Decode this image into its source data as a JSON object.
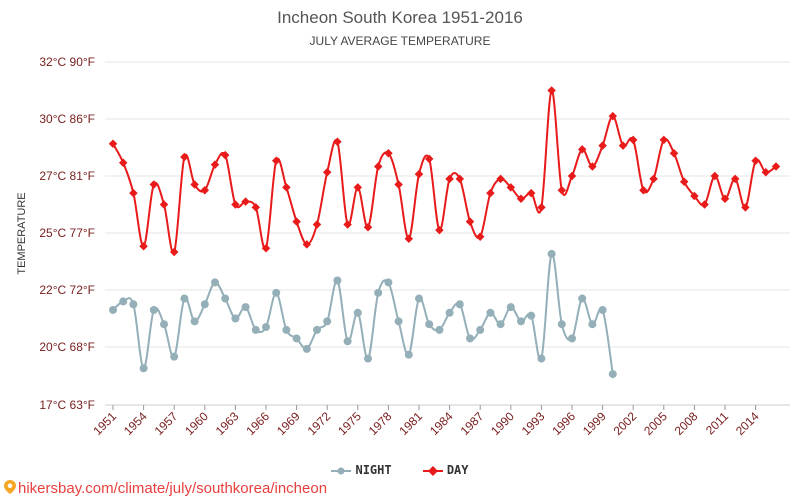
{
  "title": "Incheon South Korea 1951-2016",
  "subtitle": "JULY AVERAGE TEMPERATURE",
  "footer_url": "hikersbay.com/climate/july/southkorea/incheon",
  "colors": {
    "day": "#e81a1a",
    "night": "#94afb8",
    "grid": "#e6e6e6",
    "axis_text": "#7a2020"
  },
  "chart_data": {
    "type": "line",
    "title": "Incheon South Korea 1951-2016",
    "subtitle": "JULY AVERAGE TEMPERATURE",
    "ylabel": "TEMPERATURE",
    "ylim": [
      17,
      32
    ],
    "y_ticks": [
      {
        "value": 17,
        "label": "17°C 63°F"
      },
      {
        "value": 20,
        "label": "20°C 68°F"
      },
      {
        "value": 22,
        "label": "22°C 72°F"
      },
      {
        "value": 25,
        "label": "25°C 77°F"
      },
      {
        "value": 27,
        "label": "27°C 81°F"
      },
      {
        "value": 30,
        "label": "30°C 86°F"
      },
      {
        "value": 32,
        "label": "32°C 90°F"
      }
    ],
    "xlim": [
      1951,
      2016
    ],
    "x_ticks": [
      "1951",
      "1954",
      "1957",
      "1960",
      "1963",
      "1966",
      "1969",
      "1972",
      "1975",
      "1978",
      "1981",
      "1984",
      "1987",
      "1990",
      "1993",
      "1996",
      "1999",
      "2002",
      "2005",
      "2008",
      "2011",
      "2014"
    ],
    "grid": true,
    "legend": "bottom",
    "series": [
      {
        "name": "NIGHT",
        "x": [
          1951,
          1952,
          1953,
          1954,
          1955,
          1956,
          1957,
          1958,
          1959,
          1960,
          1961,
          1962,
          1963,
          1964,
          1965,
          1966,
          1967,
          1968,
          1969,
          1970,
          1971,
          1972,
          1973,
          1974,
          1975,
          1976,
          1977,
          1978,
          1979,
          1980,
          1981,
          1982,
          1983,
          1984,
          1985,
          1986,
          1987,
          1988,
          1989,
          1990,
          1991,
          1992,
          1993,
          1994,
          1995,
          1996,
          1997,
          1998,
          1999,
          2000
        ],
        "values": [
          21.3,
          21.6,
          21.5,
          18.9,
          21.3,
          20.8,
          19.5,
          21.7,
          20.9,
          21.5,
          22.4,
          21.7,
          21.0,
          21.4,
          20.6,
          20.7,
          21.9,
          20.6,
          20.3,
          19.9,
          20.6,
          20.9,
          22.5,
          20.2,
          21.2,
          19.4,
          21.9,
          22.4,
          20.9,
          19.6,
          21.7,
          20.8,
          20.6,
          21.2,
          21.5,
          20.3,
          20.6,
          21.2,
          20.8,
          21.4,
          20.9,
          21.1,
          19.4,
          23.9,
          20.8,
          20.3,
          21.7,
          20.8,
          21.3,
          18.6
        ]
      },
      {
        "name": "DAY",
        "x": [
          1951,
          1952,
          1953,
          1954,
          1955,
          1956,
          1957,
          1958,
          1959,
          1960,
          1961,
          1962,
          1963,
          1964,
          1965,
          1966,
          1967,
          1968,
          1969,
          1970,
          1971,
          1972,
          1973,
          1974,
          1975,
          1976,
          1977,
          1978,
          1979,
          1980,
          1981,
          1982,
          1983,
          1984,
          1985,
          1986,
          1987,
          1988,
          1989,
          1990,
          1991,
          1992,
          1993,
          1994,
          1995,
          1996,
          1997,
          1998,
          1999,
          2000,
          2001,
          2002,
          2003,
          2004,
          2005,
          2006,
          2007,
          2008,
          2009,
          2010,
          2011,
          2012,
          2013,
          2014,
          2015,
          2016
        ],
        "values": [
          28.7,
          27.7,
          26.4,
          24.3,
          26.7,
          26.0,
          24.0,
          28.0,
          26.7,
          26.5,
          27.6,
          28.1,
          26.0,
          26.1,
          25.9,
          24.2,
          27.8,
          26.6,
          25.4,
          24.4,
          25.3,
          27.2,
          28.8,
          25.3,
          26.6,
          25.2,
          27.5,
          28.2,
          26.7,
          24.7,
          27.1,
          27.9,
          25.1,
          26.9,
          26.9,
          25.4,
          24.8,
          26.4,
          26.9,
          26.6,
          26.2,
          26.4,
          25.9,
          31.0,
          26.5,
          27.0,
          28.4,
          27.5,
          28.6,
          30.1,
          28.6,
          28.9,
          26.5,
          26.9,
          28.9,
          28.2,
          26.8,
          26.3,
          26.0,
          27.0,
          26.2,
          26.9,
          25.9,
          27.8,
          27.2,
          27.5
        ]
      }
    ]
  }
}
